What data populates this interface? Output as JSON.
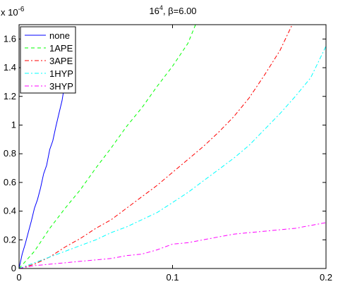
{
  "chart_data": {
    "type": "line",
    "title_main": "16",
    "title_sup": "4",
    "title_rest": ", β=6.00",
    "exponent_base": "x 10",
    "exponent_power": "-6",
    "xlim": [
      0,
      0.2
    ],
    "ylim": [
      0,
      1.7
    ],
    "xticks": [
      0,
      0.1,
      0.2
    ],
    "xtick_labels": [
      "0",
      "0.1",
      "0.2"
    ],
    "yticks": [
      0,
      0.2,
      0.4,
      0.6,
      0.8,
      1.0,
      1.2,
      1.4,
      1.6
    ],
    "ytick_labels": [
      "0",
      "0.2",
      "0.4",
      "0.6",
      "0.8",
      "1",
      "1.2",
      "1.4",
      "1.6"
    ],
    "grid": false,
    "legend_position": "top-left",
    "series": [
      {
        "name": "none",
        "color": "#0000ff",
        "dash": "",
        "x": [
          0,
          0.002,
          0.004,
          0.006,
          0.008,
          0.01,
          0.012,
          0.014,
          0.016,
          0.018,
          0.02,
          0.022,
          0.024,
          0.026,
          0.028,
          0.0295
        ],
        "y": [
          0,
          0.1,
          0.17,
          0.25,
          0.33,
          0.42,
          0.48,
          0.56,
          0.66,
          0.72,
          0.83,
          0.89,
          0.99,
          1.08,
          1.17,
          1.27
        ]
      },
      {
        "name": "1APE",
        "color": "#00ff00",
        "dash": "5,4",
        "x": [
          0,
          0.01,
          0.02,
          0.03,
          0.04,
          0.05,
          0.06,
          0.07,
          0.08,
          0.09,
          0.1,
          0.11,
          0.115
        ],
        "y": [
          0,
          0.12,
          0.28,
          0.42,
          0.55,
          0.7,
          0.84,
          0.99,
          1.12,
          1.27,
          1.41,
          1.57,
          1.7
        ]
      },
      {
        "name": "3APE",
        "color": "#ff0000",
        "dash": "6,3,2,3",
        "x": [
          0,
          0.01,
          0.02,
          0.03,
          0.04,
          0.05,
          0.06,
          0.07,
          0.08,
          0.09,
          0.1,
          0.11,
          0.12,
          0.13,
          0.14,
          0.15,
          0.16,
          0.17,
          0.178
        ],
        "y": [
          0,
          0.03,
          0.08,
          0.15,
          0.21,
          0.28,
          0.34,
          0.42,
          0.5,
          0.58,
          0.67,
          0.76,
          0.85,
          0.95,
          1.06,
          1.19,
          1.35,
          1.52,
          1.7
        ]
      },
      {
        "name": "1HYP",
        "color": "#00ffff",
        "dash": "6,3,2,3",
        "x": [
          0,
          0.01,
          0.02,
          0.03,
          0.04,
          0.05,
          0.06,
          0.07,
          0.08,
          0.09,
          0.1,
          0.11,
          0.12,
          0.13,
          0.14,
          0.15,
          0.16,
          0.17,
          0.18,
          0.19,
          0.2
        ],
        "y": [
          0,
          0.04,
          0.08,
          0.12,
          0.16,
          0.2,
          0.25,
          0.29,
          0.34,
          0.39,
          0.46,
          0.53,
          0.61,
          0.69,
          0.77,
          0.86,
          0.97,
          1.08,
          1.2,
          1.33,
          1.55
        ]
      },
      {
        "name": "3HYP",
        "color": "#ff00ff",
        "dash": "6,3,2,3",
        "x": [
          0,
          0.01,
          0.02,
          0.03,
          0.04,
          0.05,
          0.06,
          0.07,
          0.08,
          0.09,
          0.1,
          0.11,
          0.12,
          0.13,
          0.14,
          0.15,
          0.16,
          0.17,
          0.18,
          0.19,
          0.2
        ],
        "y": [
          0,
          0.02,
          0.03,
          0.04,
          0.05,
          0.06,
          0.07,
          0.09,
          0.1,
          0.13,
          0.17,
          0.18,
          0.2,
          0.22,
          0.24,
          0.25,
          0.26,
          0.27,
          0.28,
          0.3,
          0.32
        ]
      }
    ]
  }
}
